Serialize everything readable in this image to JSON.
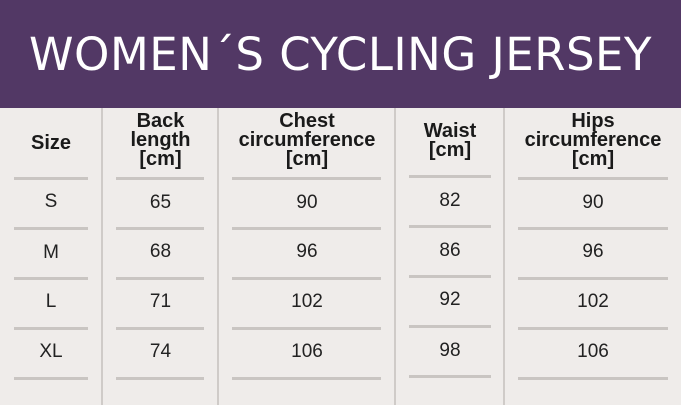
{
  "title": "WOMEN´S CYCLING JERSEY",
  "columns": [
    {
      "header": "Size",
      "values": [
        "S",
        "M",
        "L",
        "XL"
      ]
    },
    {
      "header": "Back\nlength\n[cm]",
      "values": [
        "65",
        "68",
        "71",
        "74"
      ]
    },
    {
      "header": "Chest\ncircumference\n[cm]",
      "values": [
        "90",
        "96",
        "102",
        "106"
      ]
    },
    {
      "header": "Waist\n[cm]",
      "values": [
        "82",
        "86",
        "92",
        "98"
      ]
    },
    {
      "header": "Hips\ncircumference\n[cm]",
      "values": [
        "90",
        "96",
        "102",
        "106"
      ]
    }
  ],
  "colors": {
    "banner": "#523865",
    "background": "#efecea",
    "rule": "#c9c5c2"
  }
}
